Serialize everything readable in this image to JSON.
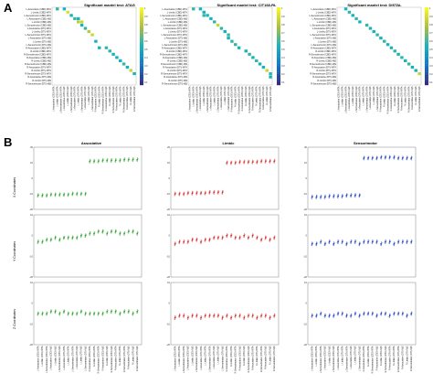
{
  "panels": {
    "a": "A",
    "b": "B"
  },
  "matrix_titles": [
    "Significant mantel test: ATAG",
    "Significant mantel test: CIT168-RL",
    "Significant mantel test: DISTAL"
  ],
  "region_labels": [
    "L-Associative (CBD)-WTA",
    "L-Limbic (CBD)-WTA",
    "L-Sensorimotor (CBD)-WTA",
    "L-Associative (CBD)-MjS",
    "L-Limbic (CBD)-MjS",
    "L-Sensorimotor (CBD)-MjS",
    "L-Associative (DTI)-WTA",
    "L-Limbic (DTI)-WTA",
    "L-Sensorimotor (DTI)-WTA",
    "L-Associative (DTI)-MjS",
    "L-Limbic (DTI)-MjS",
    "L-Sensorimotor (DTI)-MjS",
    "R-Associative (CBD)-WTA",
    "R-Limbic (CBD)-WTA",
    "R-Sensorimotor (CBD)-WTA",
    "R-Associative (CBD)-MjS",
    "R-Limbic (CBD)-MjS",
    "R-Sensorimotor (CBD)-MjS",
    "R-Associative (DTI)-WTA",
    "R-Limbic (DTI)-WTA",
    "R-Sensorimotor (DTI)-WTA",
    "R-Associative (DTI)-MjS",
    "R-Limbic (DTI)-MjS",
    "R-Sensorimotor (DTI)-MjS"
  ],
  "colorbar_ticks": [
    "1",
    "0.9",
    "0.8",
    "0.7",
    "0.6",
    "0.5",
    "0.4",
    "0.3",
    "0.2",
    "0.1"
  ],
  "strip_titles": [
    "Associative",
    "Limbic",
    "Sensorimotor"
  ],
  "row_axis_labels": [
    "X Coordinates",
    "Y Coordinates",
    "Z Coordinates"
  ],
  "chart_data": [
    {
      "type": "heatmap",
      "title": "Significant mantel test: ATAG",
      "cells": [
        [
          0,
          1,
          0.55
        ],
        [
          0,
          3,
          0.5
        ],
        [
          1,
          4,
          0.9
        ],
        [
          2,
          5,
          0.5
        ],
        [
          3,
          6,
          0.55
        ],
        [
          3,
          7,
          0.5
        ],
        [
          4,
          7,
          0.8
        ],
        [
          4,
          8,
          0.85
        ],
        [
          5,
          8,
          0.5
        ],
        [
          6,
          9,
          0.55
        ],
        [
          7,
          10,
          0.8
        ],
        [
          8,
          11,
          0.85
        ],
        [
          10,
          12,
          0.5
        ],
        [
          12,
          13,
          0.5
        ],
        [
          12,
          15,
          0.55
        ],
        [
          13,
          16,
          0.55
        ],
        [
          14,
          17,
          0.5
        ],
        [
          15,
          18,
          0.5
        ],
        [
          16,
          19,
          0.5
        ],
        [
          17,
          20,
          0.55
        ],
        [
          18,
          21,
          0.5
        ],
        [
          19,
          22,
          0.85
        ],
        [
          20,
          23,
          0.5
        ]
      ]
    },
    {
      "type": "heatmap",
      "title": "Significant mantel test: CIT168-RL",
      "cells": [
        [
          0,
          1,
          0.55
        ],
        [
          0,
          3,
          0.5
        ],
        [
          1,
          4,
          0.5
        ],
        [
          2,
          4,
          0.55
        ],
        [
          2,
          5,
          0.5
        ],
        [
          3,
          6,
          0.5
        ],
        [
          4,
          7,
          0.55
        ],
        [
          5,
          8,
          0.85
        ],
        [
          6,
          9,
          0.55
        ],
        [
          7,
          10,
          0.5
        ],
        [
          8,
          11,
          0.55
        ],
        [
          9,
          11,
          0.5
        ],
        [
          10,
          12,
          0.55
        ],
        [
          11,
          13,
          0.55
        ],
        [
          12,
          14,
          0.5
        ],
        [
          13,
          16,
          0.5
        ],
        [
          14,
          17,
          0.55
        ],
        [
          15,
          18,
          0.5
        ],
        [
          16,
          19,
          0.55
        ],
        [
          17,
          20,
          0.5
        ],
        [
          18,
          21,
          0.5
        ],
        [
          19,
          22,
          0.85
        ],
        [
          20,
          23,
          0.55
        ],
        [
          21,
          23,
          0.5
        ]
      ]
    },
    {
      "type": "heatmap",
      "title": "Significant mantel test: DISTAL",
      "cells": [
        [
          0,
          2,
          0.5
        ],
        [
          1,
          3,
          0.55
        ],
        [
          2,
          4,
          0.5
        ],
        [
          3,
          5,
          0.55
        ],
        [
          4,
          6,
          0.5
        ],
        [
          5,
          8,
          0.55
        ],
        [
          6,
          9,
          0.5
        ],
        [
          7,
          10,
          0.5
        ],
        [
          8,
          11,
          0.55
        ],
        [
          9,
          12,
          0.5
        ],
        [
          10,
          13,
          0.55
        ],
        [
          11,
          14,
          0.5
        ],
        [
          12,
          15,
          0.5
        ],
        [
          13,
          16,
          0.55
        ],
        [
          14,
          17,
          0.5
        ],
        [
          15,
          18,
          0.55
        ],
        [
          16,
          19,
          0.5
        ],
        [
          17,
          20,
          0.55
        ],
        [
          18,
          21,
          0.5
        ],
        [
          19,
          22,
          0.5
        ],
        [
          20,
          23,
          0.85
        ]
      ]
    },
    {
      "type": "scatter",
      "title": "Associative",
      "series": [
        {
          "color": "#2ca02c",
          "x_values": [
            -11,
            -11,
            -11,
            -10.5,
            -10.5,
            -10.5,
            -10.5,
            -10.5,
            -10,
            -10,
            -10,
            -10,
            11,
            11,
            11,
            11.5,
            11.5,
            11.5,
            11.5,
            11.5,
            12,
            12,
            12,
            12
          ],
          "y_values": [
            -3,
            -3,
            -2,
            -2,
            -1,
            -2,
            -1,
            -1,
            -1,
            -1,
            0,
            0,
            1,
            1,
            2,
            2,
            1,
            2,
            2,
            1,
            1,
            2,
            2,
            1
          ],
          "z_values": [
            -5,
            -5,
            -5,
            -4,
            -4,
            -5,
            -4,
            -5,
            -5,
            -5,
            -4,
            -5,
            -5,
            -5,
            -5,
            -5,
            -4,
            -4,
            -4,
            -5,
            -4,
            -4,
            -5,
            -4
          ]
        }
      ]
    },
    {
      "type": "scatter",
      "title": "Limbic",
      "series": [
        {
          "color": "#d62728",
          "x_values": [
            -10,
            -10,
            -10,
            -9.5,
            -9.5,
            -9.5,
            -9.5,
            -9.5,
            -9,
            -9,
            -9,
            -9,
            10,
            10,
            10,
            10.5,
            10.5,
            10.5,
            10.5,
            10.5,
            11,
            11,
            11,
            11
          ],
          "y_values": [
            -4,
            -3,
            -3,
            -3,
            -2,
            -2,
            -3,
            -2,
            -2,
            -1,
            -1,
            -1,
            0,
            0,
            -1,
            -1,
            0,
            -1,
            0,
            -1,
            -2,
            -1,
            -2,
            -1
          ],
          "z_values": [
            -7,
            -6,
            -6,
            -7,
            -6,
            -6,
            -7,
            -6,
            -6,
            -6,
            -6,
            -7,
            -6,
            -7,
            -6,
            -6,
            -7,
            -6,
            -6,
            -7,
            -6,
            -6,
            -7,
            -6
          ]
        }
      ]
    },
    {
      "type": "scatter",
      "title": "Sensorimotor",
      "series": [
        {
          "color": "#1f3fbf",
          "x_values": [
            -12,
            -12,
            -12,
            -12,
            -11.5,
            -11.5,
            -11.5,
            -11.5,
            -11,
            -11,
            -11,
            -11,
            13,
            13,
            13,
            13,
            13.5,
            13.5,
            13.5,
            13.5,
            13,
            13,
            13,
            13
          ],
          "y_values": [
            -4,
            -4,
            -3,
            -4,
            -3,
            -4,
            -3,
            -3,
            -4,
            -3,
            -3,
            -4,
            -3,
            -3,
            -3,
            -3,
            -4,
            -3,
            -3,
            -4,
            -3,
            -3,
            -3,
            -3
          ],
          "z_values": [
            -6,
            -6,
            -5,
            -6,
            -6,
            -6,
            -5,
            -5,
            -6,
            -6,
            -5,
            -6,
            -5,
            -5,
            -5,
            -6,
            -5,
            -5,
            -6,
            -5,
            -5,
            -5,
            -6,
            -5
          ]
        }
      ]
    }
  ]
}
